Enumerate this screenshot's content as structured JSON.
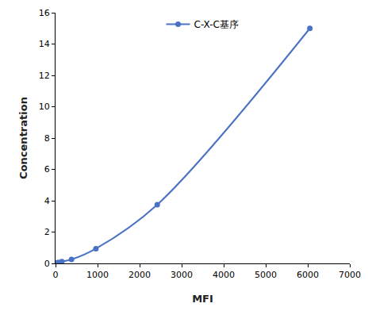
{
  "chart_data": {
    "type": "line",
    "x_label": "MFI",
    "y_label": "Concentration",
    "series": [
      {
        "name": "C-X-C基序",
        "color": "#4a72c4",
        "x": [
          30,
          60,
          150,
          380,
          960,
          2420,
          6050
        ],
        "values": [
          0.03,
          0.06,
          0.12,
          0.25,
          0.94,
          3.75,
          15
        ],
        "marker": "circle",
        "line_style": "smooth"
      }
    ],
    "xlim": [
      0,
      7000
    ],
    "xticks": [
      0,
      1000,
      2000,
      3000,
      4000,
      5000,
      6000,
      7000
    ],
    "ylim": [
      0,
      16
    ],
    "yticks": [
      0,
      2,
      4,
      6,
      8,
      10,
      12,
      14,
      16
    ],
    "grid": false,
    "legend": "top"
  }
}
